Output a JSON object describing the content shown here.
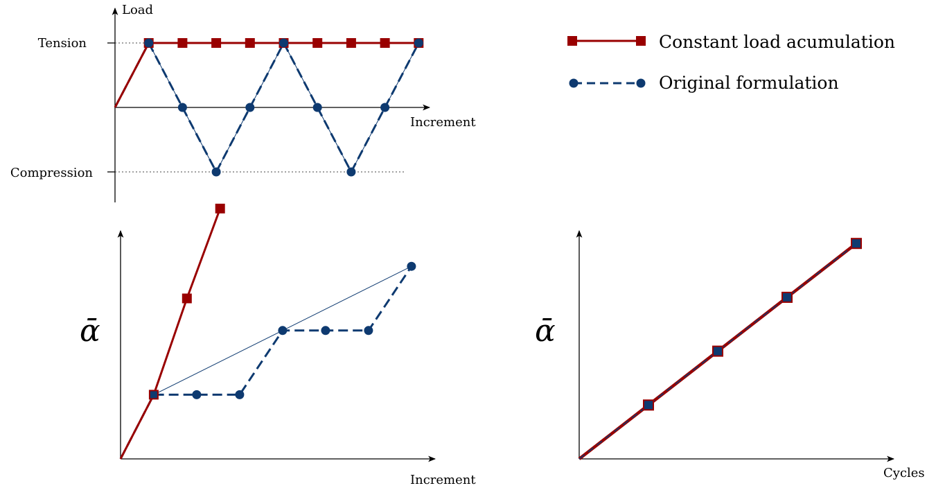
{
  "colors": {
    "red": "#990000",
    "blue": "#0e3a70"
  },
  "legend": {
    "red_label": "Constant load acumulation",
    "blue_label": "Original formulation"
  },
  "chart_data": [
    {
      "id": "load",
      "type": "line",
      "ylabel": "Load",
      "xlabel": "Increment",
      "yticks": [
        "Tension",
        "Compression"
      ],
      "ylim": [
        -1,
        1
      ],
      "series": [
        {
          "name": "Constant load acumulation",
          "x": [
            0,
            1,
            2,
            3,
            4,
            5,
            6,
            7,
            8,
            9
          ],
          "y": [
            0,
            1,
            1,
            1,
            1,
            1,
            1,
            1,
            1,
            1
          ]
        },
        {
          "name": "Original formulation",
          "x": [
            0,
            1,
            2,
            3,
            4,
            5,
            6,
            7,
            8,
            9
          ],
          "y": [
            0,
            1,
            0,
            -1,
            0,
            1,
            0,
            -1,
            0,
            1
          ]
        }
      ]
    },
    {
      "id": "alpha_increment",
      "type": "line",
      "ylabel": "ᾱ",
      "xlabel": "Increment",
      "series": [
        {
          "name": "Constant load acumulation",
          "x": [
            0,
            1,
            2,
            3
          ],
          "y": [
            0,
            1,
            2.5,
            3.9
          ]
        },
        {
          "name": "Original formulation",
          "x": [
            0,
            1,
            2,
            3,
            4,
            5,
            6,
            7
          ],
          "y": [
            0,
            1,
            1,
            1,
            2,
            2,
            2,
            3
          ]
        }
      ]
    },
    {
      "id": "alpha_cycles",
      "type": "line",
      "ylabel": "ᾱ",
      "xlabel": "Cycles",
      "series": [
        {
          "name": "Constant load acumulation",
          "x": [
            0,
            1,
            2,
            3,
            4
          ],
          "y": [
            0,
            1,
            2,
            3,
            4
          ]
        },
        {
          "name": "Original formulation",
          "x": [
            0,
            1,
            2,
            3,
            4
          ],
          "y": [
            0,
            1,
            2,
            3,
            4
          ]
        }
      ]
    }
  ]
}
